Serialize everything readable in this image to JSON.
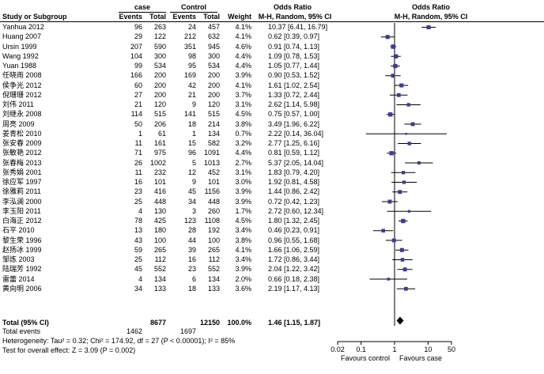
{
  "header": {
    "group1": "case",
    "group2": "Control",
    "or_title_left": "Odds Ratio",
    "or_title_right": "Odds Ratio",
    "col_study": "Study or Subgroup",
    "col_events1": "Events",
    "col_total1": "Total",
    "col_events2": "Events",
    "col_total2": "Total",
    "col_weight": "Weight",
    "col_method_left": "M-H, Random, 95% CI",
    "col_method_right": "M-H, Random, 95% CI"
  },
  "chart_data": {
    "type": "forest",
    "x_scale": "log",
    "xlim": [
      0.02,
      50
    ],
    "x_ticks": [
      "0.02",
      "0.1",
      "1",
      "10",
      "50"
    ],
    "axis_left_label": "Favours control",
    "axis_right_label": "Favours case",
    "studies": [
      {
        "name": "Yanhua 2012",
        "e1": "96",
        "t1": "263",
        "e2": "24",
        "t2": "457",
        "weight": "4.1%",
        "or_text": "10.37 [6.41, 16.79]",
        "or": 10.37,
        "lo": 6.41,
        "hi": 16.79
      },
      {
        "name": "Huang 2007",
        "e1": "29",
        "t1": "122",
        "e2": "212",
        "t2": "632",
        "weight": "4.1%",
        "or_text": "0.62 [0.39, 0.97]",
        "or": 0.62,
        "lo": 0.39,
        "hi": 0.97
      },
      {
        "name": "Ursin 1999",
        "e1": "207",
        "t1": "590",
        "e2": "351",
        "t2": "945",
        "weight": "4.6%",
        "or_text": "0.91 [0.74, 1.13]",
        "or": 0.91,
        "lo": 0.74,
        "hi": 1.13
      },
      {
        "name": "Wang 1992",
        "e1": "104",
        "t1": "300",
        "e2": "98",
        "t2": "300",
        "weight": "4.4%",
        "or_text": "1.09 [0.78, 1.53]",
        "or": 1.09,
        "lo": 0.78,
        "hi": 1.53
      },
      {
        "name": "Yuan 1988",
        "e1": "99",
        "t1": "534",
        "e2": "95",
        "t2": "534",
        "weight": "4.4%",
        "or_text": "1.05 [0.77, 1.44]",
        "or": 1.05,
        "lo": 0.77,
        "hi": 1.44
      },
      {
        "name": "任晓雨 2008",
        "e1": "166",
        "t1": "200",
        "e2": "169",
        "t2": "200",
        "weight": "3.9%",
        "or_text": "0.90 [0.53, 1.52]",
        "or": 0.9,
        "lo": 0.53,
        "hi": 1.52
      },
      {
        "name": "侯争光 2012",
        "e1": "60",
        "t1": "200",
        "e2": "42",
        "t2": "200",
        "weight": "4.1%",
        "or_text": "1.61 [1.02, 2.54]",
        "or": 1.61,
        "lo": 1.02,
        "hi": 2.54
      },
      {
        "name": "倪珊珊 2012",
        "e1": "27",
        "t1": "200",
        "e2": "21",
        "t2": "200",
        "weight": "3.7%",
        "or_text": "1.33 [0.72, 2.44]",
        "or": 1.33,
        "lo": 0.72,
        "hi": 2.44
      },
      {
        "name": "刘伟 2011",
        "e1": "21",
        "t1": "120",
        "e2": "9",
        "t2": "120",
        "weight": "3.1%",
        "or_text": "2.62 [1.14, 5.98]",
        "or": 2.62,
        "lo": 1.14,
        "hi": 5.98
      },
      {
        "name": "刘继永 2008",
        "e1": "114",
        "t1": "515",
        "e2": "141",
        "t2": "515",
        "weight": "4.5%",
        "or_text": "0.75 [0.57, 1.00]",
        "or": 0.75,
        "lo": 0.57,
        "hi": 1.0
      },
      {
        "name": "周亮 2009",
        "e1": "50",
        "t1": "206",
        "e2": "18",
        "t2": "214",
        "weight": "3.8%",
        "or_text": "3.49 [1.96, 6.22]",
        "or": 3.49,
        "lo": 1.96,
        "hi": 6.22
      },
      {
        "name": "姜青松 2010",
        "e1": "1",
        "t1": "61",
        "e2": "1",
        "t2": "134",
        "weight": "0.7%",
        "or_text": "2.22 [0.14, 36.04]",
        "or": 2.22,
        "lo": 0.14,
        "hi": 36.04
      },
      {
        "name": "张安春 2009",
        "e1": "11",
        "t1": "161",
        "e2": "15",
        "t2": "582",
        "weight": "3.2%",
        "or_text": "2.77 [1.25, 6.16]",
        "or": 2.77,
        "lo": 1.25,
        "hi": 6.16
      },
      {
        "name": "张敏艳 2012",
        "e1": "71",
        "t1": "975",
        "e2": "96",
        "t2": "1091",
        "weight": "4.4%",
        "or_text": "0.81 [0.59, 1.12]",
        "or": 0.81,
        "lo": 0.59,
        "hi": 1.12
      },
      {
        "name": "张春梅 2013",
        "e1": "26",
        "t1": "1002",
        "e2": "5",
        "t2": "1013",
        "weight": "2.7%",
        "or_text": "5.37 [2.05, 14.04]",
        "or": 5.37,
        "lo": 2.05,
        "hi": 14.04
      },
      {
        "name": "张秀娟 2001",
        "e1": "11",
        "t1": "232",
        "e2": "12",
        "t2": "452",
        "weight": "3.1%",
        "or_text": "1.83 [0.79, 4.20]",
        "or": 1.83,
        "lo": 0.79,
        "hi": 4.2
      },
      {
        "name": "徐应军 1997",
        "e1": "16",
        "t1": "101",
        "e2": "9",
        "t2": "101",
        "weight": "3.0%",
        "or_text": "1.92 [0.81, 4.58]",
        "or": 1.92,
        "lo": 0.81,
        "hi": 4.58
      },
      {
        "name": "徐雅莉 2011",
        "e1": "23",
        "t1": "416",
        "e2": "45",
        "t2": "1156",
        "weight": "3.9%",
        "or_text": "1.44 [0.86, 2.42]",
        "or": 1.44,
        "lo": 0.86,
        "hi": 2.42
      },
      {
        "name": "李泓澜 2000",
        "e1": "25",
        "t1": "448",
        "e2": "34",
        "t2": "448",
        "weight": "3.9%",
        "or_text": "0.72 [0.42, 1.23]",
        "or": 0.72,
        "lo": 0.42,
        "hi": 1.23
      },
      {
        "name": "李玉阳 2011",
        "e1": "4",
        "t1": "130",
        "e2": "3",
        "t2": "260",
        "weight": "1.7%",
        "or_text": "2.72 [0.60, 12.34]",
        "or": 2.72,
        "lo": 0.6,
        "hi": 12.34
      },
      {
        "name": "白海正 2012",
        "e1": "78",
        "t1": "425",
        "e2": "123",
        "t2": "1108",
        "weight": "4.5%",
        "or_text": "1.80 [1.32, 2.45]",
        "or": 1.8,
        "lo": 1.32,
        "hi": 2.45
      },
      {
        "name": "石平 2010",
        "e1": "13",
        "t1": "180",
        "e2": "28",
        "t2": "192",
        "weight": "3.4%",
        "or_text": "0.46 [0.23, 0.91]",
        "or": 0.46,
        "lo": 0.23,
        "hi": 0.91
      },
      {
        "name": "黎生荣 1996",
        "e1": "43",
        "t1": "100",
        "e2": "44",
        "t2": "100",
        "weight": "3.8%",
        "or_text": "0.96 [0.55, 1.68]",
        "or": 0.96,
        "lo": 0.55,
        "hi": 1.68
      },
      {
        "name": "赵扬冰 1999",
        "e1": "59",
        "t1": "265",
        "e2": "39",
        "t2": "265",
        "weight": "4.1%",
        "or_text": "1.66 [1.06, 2.59]",
        "or": 1.66,
        "lo": 1.06,
        "hi": 2.59
      },
      {
        "name": "邹炼 2003",
        "e1": "25",
        "t1": "112",
        "e2": "16",
        "t2": "112",
        "weight": "3.4%",
        "or_text": "1.72 [0.86, 3.44]",
        "or": 1.72,
        "lo": 0.86,
        "hi": 3.44
      },
      {
        "name": "陆瑞芳 1992",
        "e1": "45",
        "t1": "552",
        "e2": "23",
        "t2": "552",
        "weight": "3.9%",
        "or_text": "2.04 [1.22, 3.42]",
        "or": 2.04,
        "lo": 1.22,
        "hi": 3.42
      },
      {
        "name": "雷蕾 2014",
        "e1": "4",
        "t1": "134",
        "e2": "6",
        "t2": "134",
        "weight": "2.0%",
        "or_text": "0.66 [0.18, 2.38]",
        "or": 0.66,
        "lo": 0.18,
        "hi": 2.38
      },
      {
        "name": "黄向明 2006",
        "e1": "34",
        "t1": "133",
        "e2": "18",
        "t2": "133",
        "weight": "3.6%",
        "or_text": "2.19 [1.17, 4.13]",
        "or": 2.19,
        "lo": 1.17,
        "hi": 4.13
      }
    ],
    "total": {
      "name": "Total (95% CI)",
      "t1": "8677",
      "t2": "12150",
      "weight": "100.0%",
      "or_text": "1.46 [1.15, 1.87]",
      "or": 1.46,
      "lo": 1.15,
      "hi": 1.87
    },
    "total_events": {
      "label": "Total events",
      "e1": "1462",
      "e2": "1697"
    },
    "heterogeneity": "Heterogeneity: Tau² = 0.32; Chi² = 174.92, df = 27 (P < 0.00001); I² = 85%",
    "overall_effect": "Test for overall effect: Z = 3.09 (P = 0.002)"
  },
  "colors": {
    "marker": "#3b3b9a",
    "line": "#000000"
  }
}
